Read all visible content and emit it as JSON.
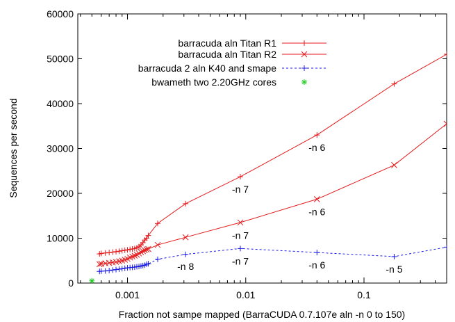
{
  "chart_data": {
    "type": "line",
    "title": "",
    "xlabel": "Fraction not sampe mapped (BarraCUDA 0.7.107e aln -n 0 to 150)",
    "ylabel": "Sequences per second",
    "x_scale": "log",
    "xlim": [
      0.00038,
      0.5
    ],
    "ylim": [
      0,
      60000
    ],
    "x_ticks": [
      {
        "value": 0.001,
        "label": "0.001"
      },
      {
        "value": 0.01,
        "label": "0.01"
      },
      {
        "value": 0.1,
        "label": "0.1"
      }
    ],
    "y_ticks": [
      {
        "value": 0,
        "label": "0"
      },
      {
        "value": 10000,
        "label": "10000"
      },
      {
        "value": 20000,
        "label": "20000"
      },
      {
        "value": 30000,
        "label": "30000"
      },
      {
        "value": 40000,
        "label": "40000"
      },
      {
        "value": 50000,
        "label": "50000"
      },
      {
        "value": 60000,
        "label": "60000"
      }
    ],
    "grid": false,
    "legend_position": "top-left",
    "series": [
      {
        "name": "barracuda aln Titan R1",
        "color": "#e41a1c",
        "marker": "plus",
        "line": "solid",
        "points": [
          [
            0.00058,
            6500
          ],
          [
            0.0006,
            6600
          ],
          [
            0.00065,
            6700
          ],
          [
            0.0007,
            6800
          ],
          [
            0.00075,
            6900
          ],
          [
            0.0008,
            7000
          ],
          [
            0.00085,
            7100
          ],
          [
            0.0009,
            7200
          ],
          [
            0.00095,
            7300
          ],
          [
            0.001,
            7400
          ],
          [
            0.00105,
            7500
          ],
          [
            0.0011,
            7600
          ],
          [
            0.00115,
            7700
          ],
          [
            0.0012,
            7900
          ],
          [
            0.00125,
            8100
          ],
          [
            0.0013,
            8500
          ],
          [
            0.00135,
            9000
          ],
          [
            0.0014,
            9600
          ],
          [
            0.00145,
            10000
          ],
          [
            0.0015,
            10600
          ],
          [
            0.0018,
            13300
          ],
          [
            0.0031,
            17700
          ],
          [
            0.009,
            23700
          ],
          [
            0.04,
            33000
          ],
          [
            0.18,
            44400
          ],
          [
            0.5,
            51000
          ]
        ]
      },
      {
        "name": "barracuda aln Titan R2",
        "color": "#e41a1c",
        "marker": "cross",
        "line": "solid",
        "points": [
          [
            0.00058,
            4200
          ],
          [
            0.0006,
            4300
          ],
          [
            0.00065,
            4400
          ],
          [
            0.0007,
            4500
          ],
          [
            0.00075,
            4600
          ],
          [
            0.0008,
            4700
          ],
          [
            0.00085,
            4850
          ],
          [
            0.0009,
            5000
          ],
          [
            0.00095,
            5200
          ],
          [
            0.001,
            5400
          ],
          [
            0.00105,
            5700
          ],
          [
            0.0011,
            5900
          ],
          [
            0.00115,
            6100
          ],
          [
            0.0012,
            6300
          ],
          [
            0.00125,
            6600
          ],
          [
            0.0013,
            6900
          ],
          [
            0.00135,
            7100
          ],
          [
            0.0014,
            7300
          ],
          [
            0.00145,
            7500
          ],
          [
            0.0015,
            7600
          ],
          [
            0.0018,
            8500
          ],
          [
            0.0031,
            10200
          ],
          [
            0.009,
            13500
          ],
          [
            0.04,
            18700
          ],
          [
            0.18,
            26300
          ],
          [
            0.5,
            35500
          ]
        ]
      },
      {
        "name": "barracuda 2 aln K40 and smape",
        "color": "#1a1ae6",
        "marker": "plus",
        "line": "dashed",
        "points": [
          [
            0.00058,
            2600
          ],
          [
            0.0006,
            2650
          ],
          [
            0.00065,
            2700
          ],
          [
            0.0007,
            2800
          ],
          [
            0.00075,
            2900
          ],
          [
            0.0008,
            3000
          ],
          [
            0.00085,
            3100
          ],
          [
            0.0009,
            3200
          ],
          [
            0.00095,
            3300
          ],
          [
            0.001,
            3400
          ],
          [
            0.00105,
            3450
          ],
          [
            0.0011,
            3500
          ],
          [
            0.00115,
            3550
          ],
          [
            0.0012,
            3650
          ],
          [
            0.00125,
            3700
          ],
          [
            0.0013,
            3800
          ],
          [
            0.00135,
            3900
          ],
          [
            0.0014,
            4000
          ],
          [
            0.00145,
            4200
          ],
          [
            0.0015,
            4300
          ],
          [
            0.0018,
            5300
          ],
          [
            0.0031,
            6400
          ],
          [
            0.009,
            7700
          ],
          [
            0.04,
            6800
          ],
          [
            0.18,
            5900
          ],
          [
            0.5,
            8000
          ]
        ]
      },
      {
        "name": "bwameth two 2.20GHz cores",
        "color": "#22cc22",
        "marker": "star",
        "line": "none",
        "points": [
          [
            0.0005,
            500
          ]
        ]
      }
    ],
    "annotations": [
      {
        "text": "-n 6",
        "x": 0.04,
        "y": 30200
      },
      {
        "text": "-n 7",
        "x": 0.009,
        "y": 20900
      },
      {
        "text": "-n 6",
        "x": 0.04,
        "y": 15900
      },
      {
        "text": "-n 7",
        "x": 0.009,
        "y": 10600
      },
      {
        "text": "-n 8",
        "x": 0.0031,
        "y": 3700
      },
      {
        "text": "-n 7",
        "x": 0.009,
        "y": 4900
      },
      {
        "text": "-n 6",
        "x": 0.04,
        "y": 4000
      },
      {
        "text": "-n 5",
        "x": 0.18,
        "y": 3100
      }
    ]
  }
}
